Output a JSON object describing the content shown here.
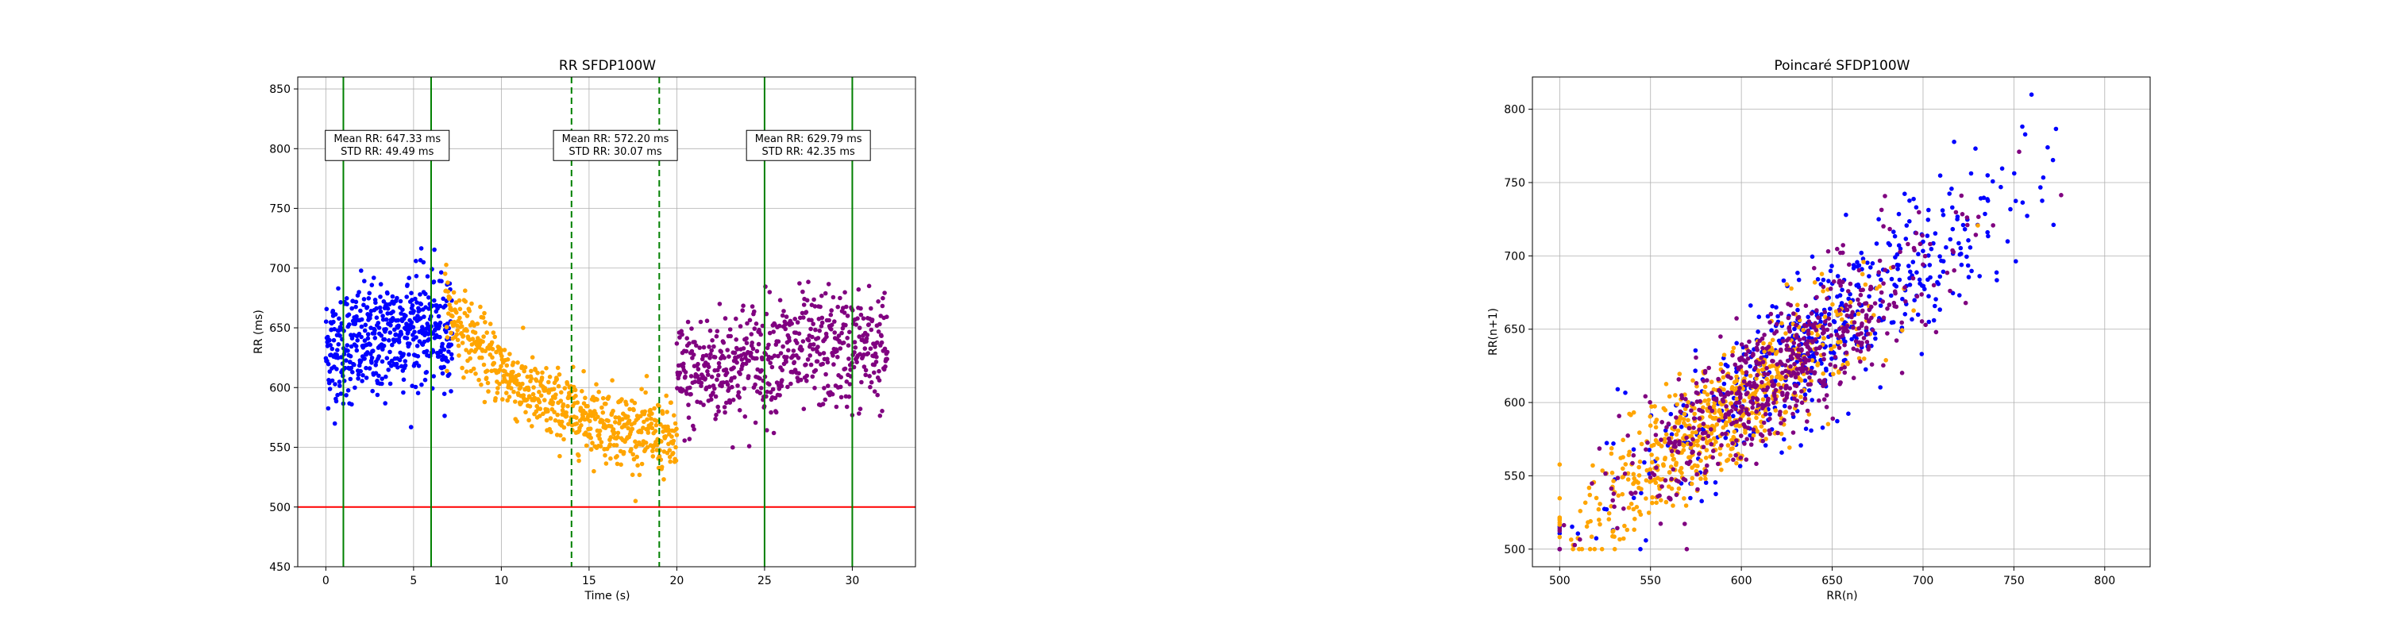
{
  "chart_data": [
    {
      "type": "scatter",
      "title": "RR SFDP100W",
      "xlabel": "Time (s)",
      "ylabel": "RR (ms)",
      "xlim": [
        -1.6,
        33.6
      ],
      "ylim": [
        450,
        860
      ],
      "xticks": [
        0,
        5,
        10,
        15,
        20,
        25,
        30
      ],
      "yticks": [
        450,
        500,
        550,
        600,
        650,
        700,
        750,
        800,
        850
      ],
      "grid": true,
      "series": [
        {
          "color": "#0000ff",
          "x_range": [
            0,
            7.2
          ],
          "trend": [
            [
              0,
              632
            ],
            [
              3,
              640
            ],
            [
              5,
              652
            ],
            [
              7.2,
              645
            ]
          ],
          "spread": 44,
          "count": 520
        },
        {
          "color": "#ffa500",
          "x_range": [
            6.8,
            20
          ],
          "trend": [
            [
              6.8,
              668
            ],
            [
              9,
              628
            ],
            [
              12,
              590
            ],
            [
              15,
              575
            ],
            [
              18,
              562
            ],
            [
              20,
              555
            ]
          ],
          "spread": 28,
          "count": 640
        },
        {
          "color": "#800080",
          "x_range": [
            20,
            32
          ],
          "trend": [
            [
              20,
              605
            ],
            [
              23,
              620
            ],
            [
              26,
              628
            ],
            [
              29,
              632
            ],
            [
              32,
              632
            ]
          ],
          "spread": 45,
          "count": 600
        }
      ],
      "vertical_lines": [
        {
          "x": 1,
          "style": "solid",
          "color": "#008000"
        },
        {
          "x": 6,
          "style": "solid",
          "color": "#008000"
        },
        {
          "x": 14,
          "style": "dashed",
          "color": "#008000"
        },
        {
          "x": 19,
          "style": "dashed",
          "color": "#008000"
        },
        {
          "x": 25,
          "style": "solid",
          "color": "#008000"
        },
        {
          "x": 30,
          "style": "solid",
          "color": "#008000"
        }
      ],
      "horizontal_lines": [
        {
          "y": 500,
          "color": "#ff0000"
        }
      ],
      "annotations": [
        {
          "x": 3.5,
          "y": 810,
          "lines": [
            "Mean RR: 647.33 ms",
            "STD RR: 49.49 ms"
          ]
        },
        {
          "x": 16.5,
          "y": 810,
          "lines": [
            "Mean RR: 572.20 ms",
            "STD RR: 30.07 ms"
          ]
        },
        {
          "x": 27.5,
          "y": 810,
          "lines": [
            "Mean RR: 629.79 ms",
            "STD RR: 42.35 ms"
          ]
        }
      ]
    },
    {
      "type": "scatter",
      "title": "Poincaré SFDP100W",
      "xlabel": "RR(n)",
      "ylabel": "RR(n+1)",
      "xlim": [
        485,
        825
      ],
      "ylim": [
        488,
        822
      ],
      "xticks": [
        500,
        550,
        600,
        650,
        700,
        750,
        800
      ],
      "yticks": [
        500,
        550,
        600,
        650,
        700,
        750,
        800
      ],
      "grid": true,
      "series": [
        {
          "color": "#0000ff",
          "center": 645,
          "spread": 50,
          "jitter": 18,
          "count": 500
        },
        {
          "color": "#ffa500",
          "center": 590,
          "spread": 38,
          "jitter": 14,
          "count": 620
        },
        {
          "color": "#800080",
          "center": 618,
          "spread": 42,
          "jitter": 16,
          "count": 600
        }
      ]
    }
  ]
}
